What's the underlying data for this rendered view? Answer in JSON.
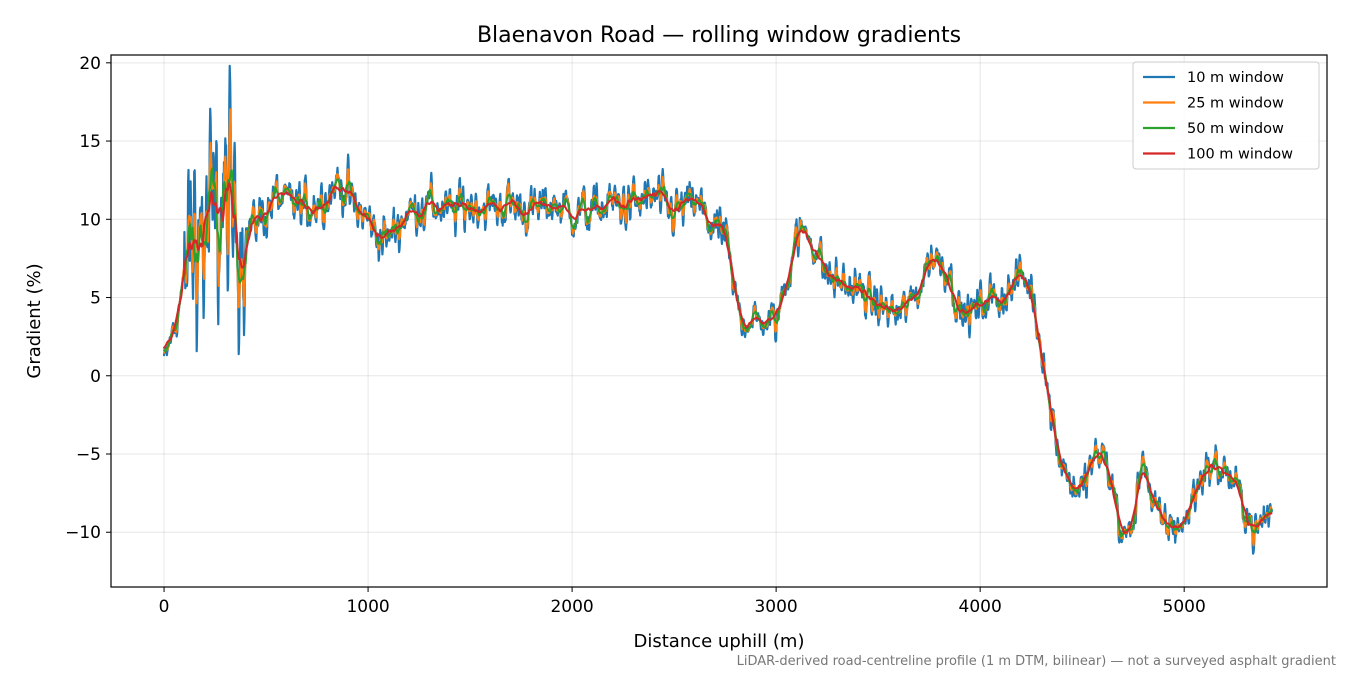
{
  "chart_data": {
    "type": "line",
    "title": "Blaenavon Road — rolling window gradients",
    "xlabel": "Distance uphill (m)",
    "ylabel": "Gradient (%)",
    "xlim": [
      -260,
      5700
    ],
    "ylim": [
      -13.5,
      20.5
    ],
    "xticks": [
      0,
      1000,
      2000,
      3000,
      4000,
      5000
    ],
    "yticks": [
      -10,
      -5,
      0,
      5,
      10,
      15,
      20
    ],
    "xtick_labels": [
      "0",
      "1000",
      "2000",
      "3000",
      "4000",
      "5000"
    ],
    "ytick_labels": [
      "−10",
      "−5",
      "0",
      "5",
      "10",
      "15",
      "20"
    ],
    "grid": true,
    "legend_position": "top-right",
    "footnote": "LiDAR-derived road-centreline profile (1 m DTM, bilinear) — not a surveyed asphalt gradient",
    "series": [
      {
        "name": "10 m window",
        "color": "#1f77b4",
        "stroke_width": 2.2
      },
      {
        "name": "25 m window",
        "color": "#ff7f0e",
        "stroke_width": 2.0
      },
      {
        "name": "50 m window",
        "color": "#2ca02c",
        "stroke_width": 2.0
      },
      {
        "name": "100 m window",
        "color": "#d62728",
        "stroke_width": 2.0
      }
    ],
    "base_profile": {
      "x": [
        0,
        50,
        100,
        130,
        160,
        200,
        250,
        300,
        350,
        400,
        500,
        550,
        600,
        700,
        800,
        850,
        900,
        950,
        1000,
        1050,
        1100,
        1150,
        1200,
        1250,
        1300,
        1400,
        1500,
        1600,
        1700,
        1800,
        1900,
        2000,
        2100,
        2200,
        2300,
        2400,
        2500,
        2600,
        2700,
        2750,
        2800,
        2850,
        2900,
        2950,
        3000,
        3050,
        3100,
        3150,
        3200,
        3250,
        3300,
        3400,
        3500,
        3600,
        3650,
        3700,
        3750,
        3800,
        3850,
        3900,
        3950,
        4000,
        4050,
        4100,
        4150,
        4200,
        4250,
        4300,
        4350,
        4400,
        4450,
        4500,
        4550,
        4600,
        4650,
        4700,
        4750,
        4800,
        4850,
        4900,
        4950,
        5000,
        5050,
        5100,
        5150,
        5200,
        5250,
        5300,
        5350,
        5400,
        5430
      ],
      "y": [
        1,
        3,
        6,
        8.5,
        9.5,
        8.5,
        10,
        10.5,
        10.5,
        9.3,
        10.5,
        11.5,
        11,
        10.8,
        11.5,
        12.3,
        11.8,
        10.5,
        10,
        9,
        8.8,
        9.8,
        10.5,
        10.8,
        11,
        10.5,
        11,
        10.8,
        11,
        10.5,
        11,
        10.5,
        10.5,
        11,
        11,
        11.3,
        10.5,
        11,
        9.5,
        9,
        5,
        3.5,
        3.5,
        3.5,
        3.5,
        6,
        9,
        9.2,
        8,
        6.5,
        6,
        5.5,
        4.5,
        4,
        4.5,
        5.5,
        7.5,
        7.5,
        6.5,
        4,
        4,
        4.5,
        5,
        5,
        5.5,
        6.5,
        5.5,
        2,
        -2.5,
        -5.5,
        -7,
        -7.3,
        -5.5,
        -5,
        -7,
        -10.5,
        -9.5,
        -5,
        -8.5,
        -9.5,
        -9.5,
        -9.5,
        -7.5,
        -6,
        -5.8,
        -6,
        -7,
        -8.5,
        -10,
        -9,
        -8.5
      ]
    },
    "noise_amplitude_10m": [
      {
        "x_range": [
          0,
          100
        ],
        "amplitude": 0.6
      },
      {
        "x_range": [
          100,
          400
        ],
        "amplitude": 4.8
      },
      {
        "x_range": [
          400,
          2700
        ],
        "amplitude": 1.1
      },
      {
        "x_range": [
          2700,
          5430
        ],
        "amplitude": 0.9
      }
    ],
    "x_max": 5430
  }
}
